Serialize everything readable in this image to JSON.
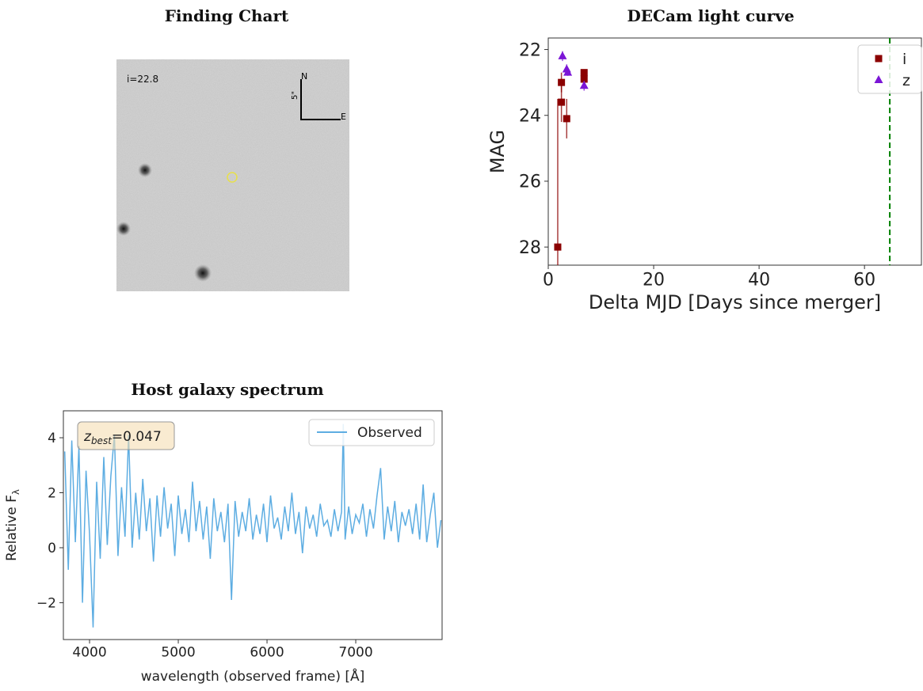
{
  "chart_data": [
    {
      "type": "image",
      "title": "Finding Chart",
      "label": "i=22.8",
      "compass_n": "N",
      "compass_e": "E",
      "scale_label": "5\""
    },
    {
      "type": "scatter",
      "title": "DECam light curve",
      "xlabel": "Delta MJD [Days since merger]",
      "ylabel": "MAG",
      "xlim": [
        0,
        70.8
      ],
      "ylim": [
        21.65,
        28.55
      ],
      "invert_y": true,
      "xticks": [
        0,
        20,
        40,
        60
      ],
      "yticks": [
        22,
        24,
        26,
        28
      ],
      "vline": 64.8,
      "vline_color": "#008000",
      "legend": "upper right",
      "series": [
        {
          "name": "i",
          "color": "#8b0000",
          "marker": "square",
          "x": [
            1.8,
            2.5,
            2.5,
            3.5,
            6.8,
            6.8
          ],
          "values": [
            28.0,
            23.0,
            23.6,
            24.1,
            22.7,
            22.9
          ],
          "yerr": [
            4.5,
            0.3,
            0.6,
            0.6,
            0.1,
            0.1
          ]
        },
        {
          "name": "z",
          "color": "#7b16d6",
          "marker": "triangle",
          "x": [
            2.7,
            3.5,
            3.7,
            6.8
          ],
          "values": [
            22.2,
            22.6,
            22.7,
            23.1
          ],
          "yerr": [
            0.15,
            0.15,
            0.1,
            0.15
          ]
        }
      ]
    },
    {
      "type": "line",
      "title": "Host galaxy spectrum",
      "xlabel": "wavelength (observed frame) [Å]",
      "ylabel": "Relative F",
      "ylabel_sub": "λ",
      "annotation_var": "z",
      "annotation_sub": "best",
      "annotation_value": "=0.047",
      "xlim": [
        3705,
        7973
      ],
      "ylim": [
        -3.34,
        4.98
      ],
      "xticks": [
        4000,
        5000,
        6000,
        7000
      ],
      "yticks": [
        {
          "value": -2,
          "label": "−2"
        },
        0,
        2,
        4
      ],
      "legend": "upper right",
      "series": [
        {
          "name": "Observed",
          "color": "#5dade2",
          "x": [
            3720,
            3760,
            3800,
            3840,
            3880,
            3920,
            3960,
            4000,
            4040,
            4080,
            4120,
            4160,
            4200,
            4240,
            4280,
            4320,
            4360,
            4400,
            4440,
            4480,
            4520,
            4560,
            4600,
            4640,
            4680,
            4720,
            4760,
            4800,
            4840,
            4880,
            4920,
            4960,
            5000,
            5040,
            5080,
            5120,
            5160,
            5200,
            5240,
            5280,
            5320,
            5360,
            5400,
            5440,
            5480,
            5520,
            5560,
            5600,
            5640,
            5680,
            5720,
            5760,
            5800,
            5840,
            5880,
            5920,
            5960,
            6000,
            6040,
            6080,
            6120,
            6160,
            6200,
            6240,
            6280,
            6320,
            6360,
            6400,
            6440,
            6480,
            6520,
            6560,
            6600,
            6640,
            6680,
            6720,
            6760,
            6800,
            6840,
            6860,
            6880,
            6920,
            6960,
            7000,
            7040,
            7080,
            7120,
            7160,
            7200,
            7240,
            7280,
            7320,
            7360,
            7400,
            7440,
            7480,
            7520,
            7560,
            7600,
            7640,
            7680,
            7720,
            7760,
            7800,
            7840,
            7880,
            7920,
            7960
          ],
          "values": [
            3.5,
            -0.8,
            3.9,
            0.2,
            3.7,
            -2.0,
            2.8,
            0.5,
            -2.9,
            2.4,
            -0.4,
            3.3,
            0.1,
            2.6,
            4.1,
            -0.3,
            2.2,
            0.4,
            4.1,
            0.0,
            2.0,
            0.3,
            2.5,
            0.6,
            1.8,
            -0.5,
            1.9,
            0.4,
            2.2,
            0.7,
            1.6,
            -0.3,
            1.9,
            0.5,
            1.4,
            0.2,
            2.4,
            0.6,
            1.7,
            0.3,
            1.5,
            -0.4,
            1.8,
            0.6,
            1.3,
            0.2,
            1.6,
            -1.9,
            1.7,
            0.4,
            1.3,
            0.6,
            1.8,
            0.3,
            1.2,
            0.5,
            1.6,
            0.2,
            1.9,
            0.7,
            1.1,
            0.3,
            1.5,
            0.6,
            2.0,
            0.5,
            1.3,
            -0.2,
            1.5,
            0.7,
            1.2,
            0.4,
            1.6,
            0.8,
            1.0,
            0.4,
            1.4,
            0.6,
            1.3,
            4.5,
            0.3,
            1.5,
            0.5,
            1.2,
            0.9,
            1.6,
            0.4,
            1.4,
            0.7,
            1.9,
            2.9,
            0.3,
            1.5,
            0.6,
            1.7,
            0.2,
            1.3,
            0.8,
            1.4,
            0.5,
            1.6,
            0.3,
            2.3,
            0.2,
            1.2,
            2.0,
            0.0,
            1.0
          ]
        }
      ]
    }
  ]
}
